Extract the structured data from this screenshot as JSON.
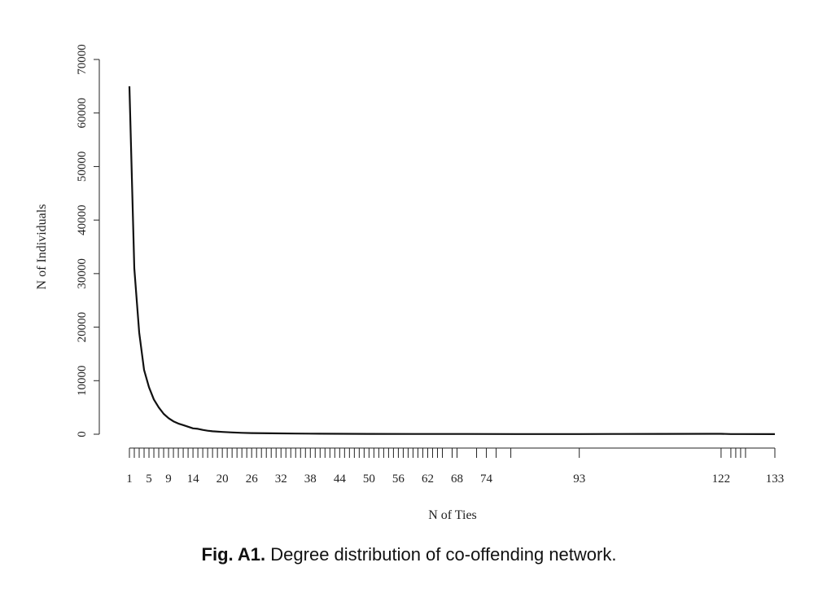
{
  "chart_data": {
    "type": "line",
    "xlabel": "N of Ties",
    "ylabel": "N of Individuals",
    "xlim": [
      1,
      133
    ],
    "ylim": [
      0,
      70000
    ],
    "y_ticks": [
      0,
      10000,
      20000,
      30000,
      40000,
      50000,
      60000,
      70000
    ],
    "x_tick_positions": [
      1,
      2,
      3,
      4,
      5,
      6,
      7,
      8,
      9,
      10,
      11,
      12,
      13,
      14,
      15,
      16,
      17,
      18,
      19,
      20,
      21,
      22,
      23,
      24,
      25,
      26,
      27,
      28,
      29,
      30,
      31,
      32,
      33,
      34,
      35,
      36,
      37,
      38,
      39,
      40,
      41,
      42,
      43,
      44,
      45,
      46,
      47,
      48,
      49,
      50,
      51,
      52,
      53,
      54,
      55,
      56,
      57,
      58,
      59,
      60,
      61,
      62,
      63,
      64,
      65,
      67,
      68,
      72,
      74,
      76,
      79,
      93,
      122,
      124,
      125,
      126,
      127,
      133
    ],
    "x_tick_labels": [
      "1",
      "5",
      "9",
      "14",
      "20",
      "26",
      "32",
      "38",
      "44",
      "50",
      "56",
      "62",
      "68",
      "74",
      "93",
      "122",
      "133"
    ],
    "x": [
      1,
      2,
      3,
      4,
      5,
      6,
      7,
      8,
      9,
      10,
      11,
      12,
      13,
      14,
      15,
      16,
      17,
      18,
      20,
      22,
      24,
      26,
      30,
      35,
      40,
      45,
      50,
      60,
      70,
      80,
      93,
      100,
      110,
      120,
      122,
      124,
      126,
      133
    ],
    "y": [
      65000,
      31000,
      19000,
      12000,
      8800,
      6500,
      5000,
      3800,
      3000,
      2400,
      2000,
      1700,
      1400,
      1100,
      1000,
      800,
      650,
      550,
      420,
      330,
      260,
      220,
      160,
      120,
      90,
      70,
      60,
      50,
      40,
      35,
      30,
      40,
      60,
      80,
      70,
      30,
      25,
      20
    ],
    "grid": false,
    "legend": "none"
  },
  "caption": {
    "label": "Fig. A1.",
    "text": "Degree distribution of co-offending network."
  }
}
